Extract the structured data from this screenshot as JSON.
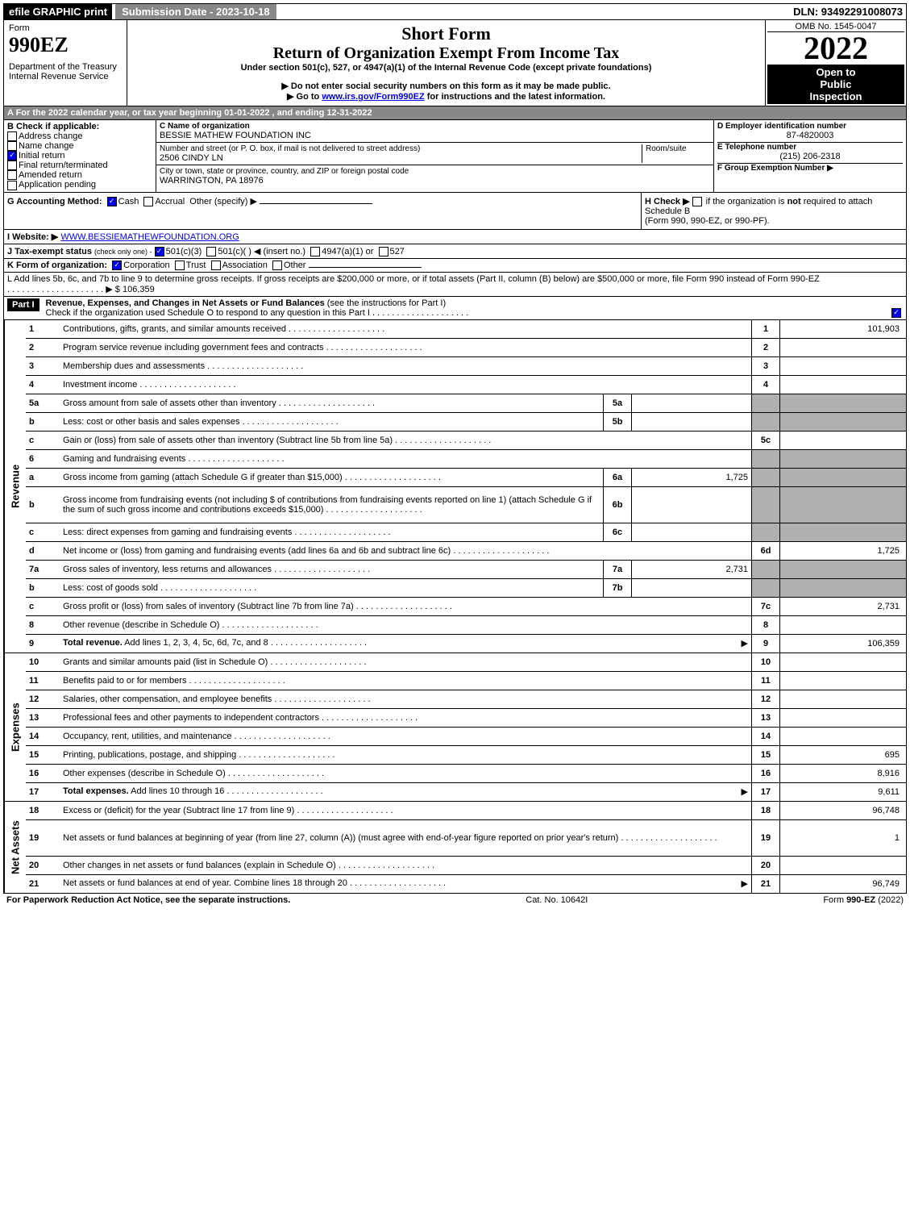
{
  "topbar": {
    "efile": "efile GRAPHIC print",
    "sub_date": "Submission Date - 2023-10-18",
    "dln": "DLN: 93492291008073"
  },
  "header": {
    "form_word": "Form",
    "form_num": "990EZ",
    "dept": "Department of the Treasury",
    "irs": "Internal Revenue Service",
    "title_short": "Short Form",
    "title_return": "Return of Organization Exempt From Income Tax",
    "subtitle": "Under section 501(c), 527, or 4947(a)(1) of the Internal Revenue Code (except private foundations)",
    "warn1_pre": "▶ Do not enter social security numbers on this form as it may be made public.",
    "warn2_pre": "▶ Go to ",
    "warn2_link": "www.irs.gov/Form990EZ",
    "warn2_post": " for instructions and the latest information.",
    "omb": "OMB No. 1545-0047",
    "year": "2022",
    "open1": "Open to",
    "open2": "Public",
    "open3": "Inspection"
  },
  "a": {
    "label": "A  For the 2022 calendar year, or tax year beginning 01-01-2022 , and ending 12-31-2022"
  },
  "b": {
    "title": "B  Check if applicable:",
    "opts": [
      {
        "label": "Address change",
        "checked": false
      },
      {
        "label": "Name change",
        "checked": false
      },
      {
        "label": "Initial return",
        "checked": true
      },
      {
        "label": "Final return/terminated",
        "checked": false
      },
      {
        "label": "Amended return",
        "checked": false
      },
      {
        "label": "Application pending",
        "checked": false
      }
    ]
  },
  "c": {
    "label": "C Name of organization",
    "name": "BESSIE MATHEW FOUNDATION INC",
    "addr_label": "Number and street (or P. O. box, if mail is not delivered to street address)",
    "room_label": "Room/suite",
    "addr": "2506 CINDY LN",
    "city_label": "City or town, state or province, country, and ZIP or foreign postal code",
    "city": "WARRINGTON, PA  18976"
  },
  "d": {
    "ein_label": "D Employer identification number",
    "ein": "87-4820003",
    "tel_label": "E Telephone number",
    "tel": "(215) 206-2318",
    "grp_label": "F Group Exemption Number  ▶"
  },
  "g": {
    "label": "G Accounting Method:",
    "cash": "Cash",
    "accrual": "Accrual",
    "other": "Other (specify) ▶"
  },
  "h": {
    "label": "H  Check ▶",
    "text1": "if the organization is ",
    "not": "not",
    "text2": " required to attach Schedule B",
    "text3": "(Form 990, 990-EZ, or 990-PF)."
  },
  "i": {
    "label": "I Website: ▶",
    "url": "WWW.BESSIEMATHEWFOUNDATION.ORG"
  },
  "j": {
    "label": "J Tax-exempt status",
    "note": "(check only one) -",
    "a": "501(c)(3)",
    "b": "501(c)(   ) ◀ (insert no.)",
    "c": "4947(a)(1) or",
    "d": "527"
  },
  "k": {
    "label": "K Form of organization:",
    "corp": "Corporation",
    "trust": "Trust",
    "assoc": "Association",
    "other": "Other"
  },
  "l": {
    "text": "L Add lines 5b, 6c, and 7b to line 9 to determine gross receipts. If gross receipts are $200,000 or more, or if total assets (Part II, column (B) below) are $500,000 or more, file Form 990 instead of Form 990-EZ",
    "amount_label": "▶ $ ",
    "amount": "106,359"
  },
  "part1": {
    "title": "Part I",
    "heading": "Revenue, Expenses, and Changes in Net Assets or Fund Balances",
    "note": "(see the instructions for Part I)",
    "check_note": "Check if the organization used Schedule O to respond to any question in this Part I"
  },
  "revenue_label": "Revenue",
  "expense_label": "Expenses",
  "netassets_label": "Net Assets",
  "revenue": [
    {
      "n": "1",
      "d": "Contributions, gifts, grants, and similar amounts received",
      "c": "1",
      "v": "101,903"
    },
    {
      "n": "2",
      "d": "Program service revenue including government fees and contracts",
      "c": "2",
      "v": ""
    },
    {
      "n": "3",
      "d": "Membership dues and assessments",
      "c": "3",
      "v": ""
    },
    {
      "n": "4",
      "d": "Investment income",
      "c": "4",
      "v": ""
    },
    {
      "n": "5a",
      "d": "Gross amount from sale of assets other than inventory",
      "sn": "5a",
      "sv": "",
      "c": "",
      "v": "",
      "shaded": true
    },
    {
      "n": "b",
      "d": "Less: cost or other basis and sales expenses",
      "sn": "5b",
      "sv": "",
      "c": "",
      "v": "",
      "shaded": true
    },
    {
      "n": "c",
      "d": "Gain or (loss) from sale of assets other than inventory (Subtract line 5b from line 5a)",
      "c": "5c",
      "v": ""
    },
    {
      "n": "6",
      "d": "Gaming and fundraising events",
      "c": "",
      "v": "",
      "shaded": true
    },
    {
      "n": "a",
      "d": "Gross income from gaming (attach Schedule G if greater than $15,000)",
      "sn": "6a",
      "sv": "1,725",
      "c": "",
      "v": "",
      "shaded": true
    },
    {
      "n": "b",
      "d": "Gross income from fundraising events (not including $                 of contributions from fundraising events reported on line 1) (attach Schedule G if the sum of such gross income and contributions exceeds $15,000)",
      "sn": "6b",
      "sv": "",
      "c": "",
      "v": "",
      "shaded": true,
      "tall": true
    },
    {
      "n": "c",
      "d": "Less: direct expenses from gaming and fundraising events",
      "sn": "6c",
      "sv": "",
      "c": "",
      "v": "",
      "shaded": true
    },
    {
      "n": "d",
      "d": "Net income or (loss) from gaming and fundraising events (add lines 6a and 6b and subtract line 6c)",
      "c": "6d",
      "v": "1,725"
    },
    {
      "n": "7a",
      "d": "Gross sales of inventory, less returns and allowances",
      "sn": "7a",
      "sv": "2,731",
      "c": "",
      "v": "",
      "shaded": true
    },
    {
      "n": "b",
      "d": "Less: cost of goods sold",
      "sn": "7b",
      "sv": "",
      "c": "",
      "v": "",
      "shaded": true
    },
    {
      "n": "c",
      "d": "Gross profit or (loss) from sales of inventory (Subtract line 7b from line 7a)",
      "c": "7c",
      "v": "2,731"
    },
    {
      "n": "8",
      "d": "Other revenue (describe in Schedule O)",
      "c": "8",
      "v": ""
    },
    {
      "n": "9",
      "d": "Total revenue. Add lines 1, 2, 3, 4, 5c, 6d, 7c, and 8",
      "c": "9",
      "v": "106,359",
      "bold": true,
      "arrow": true
    }
  ],
  "expenses": [
    {
      "n": "10",
      "d": "Grants and similar amounts paid (list in Schedule O)",
      "c": "10",
      "v": ""
    },
    {
      "n": "11",
      "d": "Benefits paid to or for members",
      "c": "11",
      "v": ""
    },
    {
      "n": "12",
      "d": "Salaries, other compensation, and employee benefits",
      "c": "12",
      "v": ""
    },
    {
      "n": "13",
      "d": "Professional fees and other payments to independent contractors",
      "c": "13",
      "v": ""
    },
    {
      "n": "14",
      "d": "Occupancy, rent, utilities, and maintenance",
      "c": "14",
      "v": ""
    },
    {
      "n": "15",
      "d": "Printing, publications, postage, and shipping",
      "c": "15",
      "v": "695"
    },
    {
      "n": "16",
      "d": "Other expenses (describe in Schedule O)",
      "c": "16",
      "v": "8,916"
    },
    {
      "n": "17",
      "d": "Total expenses. Add lines 10 through 16",
      "c": "17",
      "v": "9,611",
      "bold": true,
      "arrow": true
    }
  ],
  "netassets": [
    {
      "n": "18",
      "d": "Excess or (deficit) for the year (Subtract line 17 from line 9)",
      "c": "18",
      "v": "96,748"
    },
    {
      "n": "19",
      "d": "Net assets or fund balances at beginning of year (from line 27, column (A)) (must agree with end-of-year figure reported on prior year's return)",
      "c": "19",
      "v": "1",
      "tall": true
    },
    {
      "n": "20",
      "d": "Other changes in net assets or fund balances (explain in Schedule O)",
      "c": "20",
      "v": ""
    },
    {
      "n": "21",
      "d": "Net assets or fund balances at end of year. Combine lines 18 through 20",
      "c": "21",
      "v": "96,749",
      "arrow": true
    }
  ],
  "footer": {
    "left": "For Paperwork Reduction Act Notice, see the separate instructions.",
    "mid": "Cat. No. 10642I",
    "right_pre": "Form ",
    "right_form": "990-EZ",
    "right_yr": " (2022)"
  }
}
